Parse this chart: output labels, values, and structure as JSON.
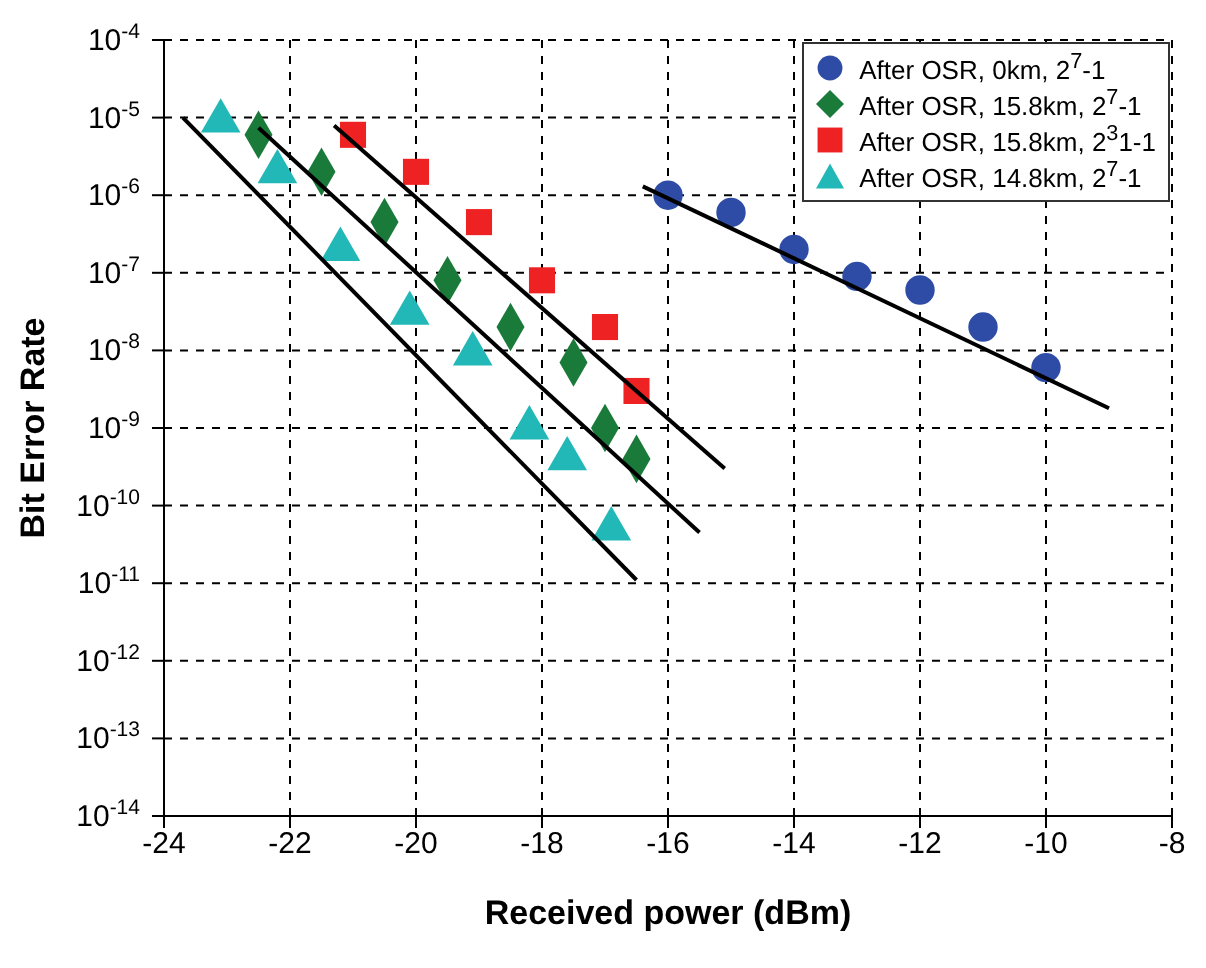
{
  "chart_data": {
    "type": "scatter",
    "xlabel": "Received power (dBm)",
    "ylabel": "Bit Error Rate",
    "xlim": [
      -24,
      -8
    ],
    "xticks": [
      -24,
      -22,
      -20,
      -18,
      -16,
      -14,
      -12,
      -10,
      -8
    ],
    "ylim": [
      1e-14,
      0.0001
    ],
    "yticks": [
      {
        "value": 1e-14,
        "label": "10$^{-14}$"
      },
      {
        "value": 1e-13,
        "label": "10$^{-13}$"
      },
      {
        "value": 1e-12,
        "label": "10$^{-12}$"
      },
      {
        "value": 1e-11,
        "label": "10$^{-11}$"
      },
      {
        "value": 1e-10,
        "label": "10$^{-10}$"
      },
      {
        "value": 1e-09,
        "label": "10$^{-9}$"
      },
      {
        "value": 1e-08,
        "label": "10$^{-8}$"
      },
      {
        "value": 1e-07,
        "label": "10$^{-7}$"
      },
      {
        "value": 1e-06,
        "label": "10$^{-6}$"
      },
      {
        "value": 1e-05,
        "label": "10$^{-5}$"
      },
      {
        "value": 0.0001,
        "label": "10$^{-4}$"
      }
    ],
    "log": "y",
    "grid": true,
    "legend": "top right",
    "series": [
      {
        "name": "After OSR, 0km, 2$^{7}$-1",
        "color": "#2e4ca6",
        "marker": "circle",
        "x": [
          -16,
          -15,
          -14,
          -13,
          -12,
          -11,
          -10
        ],
        "values": [
          1e-06,
          6e-07,
          2e-07,
          9e-08,
          6e-08,
          2e-08,
          6e-09
        ]
      },
      {
        "name": "After OSR, 15.8km, 2$^{7}$-1",
        "color": "#1a7a3a",
        "marker": "diamond",
        "x": [
          -22.5,
          -21.5,
          -20.5,
          -19.5,
          -18.5,
          -17.5,
          -17,
          -16.5
        ],
        "values": [
          6e-06,
          2e-06,
          4.5e-07,
          8e-08,
          2e-08,
          7e-09,
          1e-09,
          4e-10
        ]
      },
      {
        "name": "After OSR, 15.8km, 2$^{3}$1-1",
        "color": "#ee2222",
        "marker": "square",
        "x": [
          -21,
          -20,
          -19,
          -18,
          -17,
          -16.5
        ],
        "values": [
          6e-06,
          2e-06,
          4.5e-07,
          8e-08,
          2e-08,
          3e-09
        ]
      },
      {
        "name": "After OSR, 14.8km, 2$^{7}$-1",
        "color": "#22b8b8",
        "marker": "triangle",
        "x": [
          -23.1,
          -22.2,
          -21.2,
          -20.1,
          -19.1,
          -18.2,
          -17.6,
          -16.9
        ],
        "values": [
          9e-06,
          2e-06,
          2e-07,
          3e-08,
          9e-09,
          1e-09,
          4e-10,
          5e-11
        ]
      },
      {
        "type": "line",
        "color": "#000000",
        "marker": "none",
        "x": [
          -16.4,
          -9
        ],
        "values": [
          1.3e-06,
          1.8e-09
        ]
      },
      {
        "type": "line",
        "color": "#000000",
        "marker": "none",
        "x": [
          -22.5,
          -15.5
        ],
        "values": [
          7.4e-06,
          4.5e-11
        ]
      },
      {
        "type": "line",
        "color": "#000000",
        "marker": "none",
        "x": [
          -21.3,
          -15.1
        ],
        "values": [
          7.9e-06,
          3e-10
        ]
      },
      {
        "type": "line",
        "color": "#000000",
        "marker": "none",
        "x": [
          -23.7,
          -16.5
        ],
        "values": [
          1e-05,
          1.1e-11
        ]
      }
    ]
  }
}
